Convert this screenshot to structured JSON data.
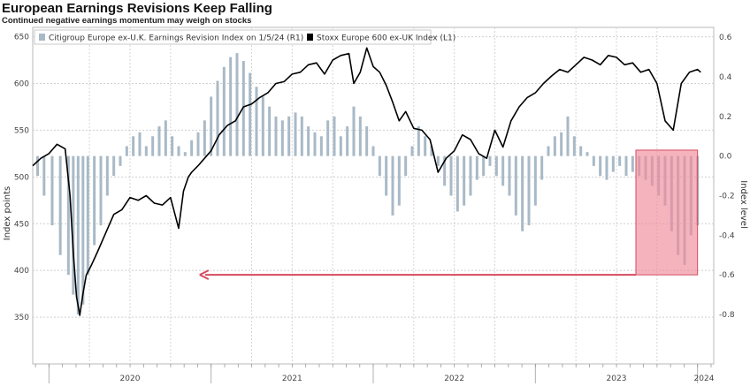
{
  "chart_data": {
    "type": "line",
    "title": "European Earnings Revisions Keep Falling",
    "subtitle": "Continued negative earnings momentum may weigh on stocks",
    "ylabel_left": "Index points",
    "ylabel_right": "Index level",
    "left_axis": {
      "min": 300,
      "max": 660,
      "ticks": [
        350,
        400,
        450,
        500,
        550,
        600,
        650
      ]
    },
    "right_axis": {
      "min": -1.05,
      "max": 0.65,
      "ticks": [
        -0.8,
        -0.6,
        -0.4,
        -0.2,
        0.0,
        0.2,
        0.4,
        0.6
      ],
      "tick_labels": [
        "-0.8",
        "-0.6",
        "-0.4",
        "-0.2",
        "0.0",
        "0.2",
        "0.4",
        "0.6"
      ]
    },
    "x_axis": {
      "start": 2019.9,
      "end": 2024.1,
      "year_labels": [
        {
          "label": "2020",
          "x": 2020.5
        },
        {
          "label": "2021",
          "x": 2021.5
        },
        {
          "label": "2022",
          "x": 2022.5
        },
        {
          "label": "2023",
          "x": 2023.5
        },
        {
          "label": "2024",
          "x": 2024.04
        }
      ],
      "year_boundaries": [
        2020,
        2021,
        2022,
        2023,
        2024
      ]
    },
    "grid": true,
    "legend": {
      "placement": "top-left",
      "entries": [
        {
          "label": "Citigroup Europe ex-U.K. Earnings Revision Index on 1/5/24 (R1)",
          "color": "#a9b9c6"
        },
        {
          "label": "Stoxx Europe 600 ex-UK Index (L1)",
          "color": "#000000"
        }
      ]
    },
    "series": [
      {
        "name": "Stoxx Europe 600 ex-UK Index (L1)",
        "axis": "left",
        "color": "#000000",
        "x": [
          2019.9,
          2019.95,
          2020.0,
          2020.05,
          2020.1,
          2020.13,
          2020.15,
          2020.17,
          2020.19,
          2020.21,
          2020.23,
          2020.26,
          2020.3,
          2020.35,
          2020.4,
          2020.45,
          2020.5,
          2020.55,
          2020.6,
          2020.65,
          2020.7,
          2020.75,
          2020.8,
          2020.83,
          2020.86,
          2020.88,
          2020.92,
          2020.96,
          2021.0,
          2021.05,
          2021.1,
          2021.15,
          2021.2,
          2021.25,
          2021.3,
          2021.35,
          2021.4,
          2021.45,
          2021.5,
          2021.55,
          2021.6,
          2021.65,
          2021.7,
          2021.75,
          2021.8,
          2021.85,
          2021.88,
          2021.92,
          2021.96,
          2022.0,
          2022.04,
          2022.08,
          2022.12,
          2022.16,
          2022.2,
          2022.25,
          2022.3,
          2022.35,
          2022.4,
          2022.45,
          2022.5,
          2022.55,
          2022.6,
          2022.65,
          2022.7,
          2022.75,
          2022.8,
          2022.85,
          2022.9,
          2022.95,
          2023.0,
          2023.05,
          2023.1,
          2023.15,
          2023.2,
          2023.25,
          2023.3,
          2023.35,
          2023.4,
          2023.45,
          2023.5,
          2023.55,
          2023.6,
          2023.65,
          2023.7,
          2023.75,
          2023.8,
          2023.85,
          2023.9,
          2023.95,
          2024.0,
          2024.02
        ],
        "values": [
          512,
          520,
          525,
          535,
          530,
          480,
          420,
          372,
          352,
          375,
          395,
          405,
          420,
          440,
          460,
          465,
          478,
          475,
          480,
          472,
          470,
          478,
          445,
          485,
          500,
          505,
          512,
          520,
          528,
          545,
          555,
          560,
          575,
          578,
          585,
          590,
          600,
          602,
          610,
          612,
          620,
          622,
          610,
          625,
          630,
          632,
          600,
          612,
          638,
          618,
          612,
          598,
          580,
          560,
          570,
          552,
          550,
          540,
          505,
          520,
          528,
          545,
          540,
          525,
          520,
          550,
          532,
          560,
          575,
          585,
          590,
          600,
          608,
          615,
          612,
          620,
          628,
          625,
          620,
          630,
          628,
          620,
          622,
          612,
          615,
          600,
          560,
          550,
          600,
          612,
          615,
          612
        ]
      },
      {
        "name": "Citigroup Europe ex-U.K. Earnings Revision Index on 1/5/24 (R1)",
        "axis": "right",
        "color": "#a9b9c6",
        "x": [
          2019.93,
          2019.97,
          2020.02,
          2020.07,
          2020.12,
          2020.15,
          2020.18,
          2020.21,
          2020.24,
          2020.28,
          2020.32,
          2020.36,
          2020.4,
          2020.44,
          2020.48,
          2020.52,
          2020.56,
          2020.6,
          2020.64,
          2020.68,
          2020.72,
          2020.76,
          2020.8,
          2020.84,
          2020.88,
          2020.92,
          2020.96,
          2021.0,
          2021.04,
          2021.08,
          2021.12,
          2021.16,
          2021.2,
          2021.24,
          2021.28,
          2021.32,
          2021.36,
          2021.4,
          2021.44,
          2021.48,
          2021.52,
          2021.56,
          2021.6,
          2021.64,
          2021.68,
          2021.72,
          2021.76,
          2021.8,
          2021.84,
          2021.88,
          2021.92,
          2021.96,
          2022.0,
          2022.04,
          2022.08,
          2022.12,
          2022.16,
          2022.2,
          2022.24,
          2022.28,
          2022.32,
          2022.36,
          2022.4,
          2022.44,
          2022.48,
          2022.52,
          2022.56,
          2022.6,
          2022.64,
          2022.68,
          2022.72,
          2022.76,
          2022.8,
          2022.84,
          2022.88,
          2022.92,
          2022.96,
          2023.0,
          2023.04,
          2023.08,
          2023.12,
          2023.16,
          2023.2,
          2023.24,
          2023.28,
          2023.32,
          2023.36,
          2023.4,
          2023.44,
          2023.48,
          2023.52,
          2023.56,
          2023.6,
          2023.64,
          2023.68,
          2023.72,
          2023.76,
          2023.8,
          2023.84,
          2023.88,
          2023.92,
          2023.96,
          2024.0
        ],
        "values": [
          -0.1,
          -0.2,
          -0.35,
          -0.5,
          -0.6,
          -0.7,
          -0.8,
          -0.75,
          -0.6,
          -0.45,
          -0.35,
          -0.2,
          -0.1,
          -0.05,
          0.05,
          0.1,
          0.12,
          0.05,
          0.1,
          0.15,
          0.18,
          0.1,
          0.05,
          0.02,
          0.08,
          0.12,
          0.18,
          0.3,
          0.38,
          0.45,
          0.5,
          0.52,
          0.48,
          0.42,
          0.35,
          0.3,
          0.25,
          0.2,
          0.18,
          0.2,
          0.22,
          0.2,
          0.15,
          0.12,
          0.1,
          0.18,
          0.2,
          0.1,
          0.15,
          0.25,
          0.2,
          0.15,
          0.05,
          -0.1,
          -0.2,
          -0.3,
          -0.25,
          -0.1,
          0.05,
          0.15,
          0.1,
          0.05,
          -0.05,
          -0.15,
          -0.2,
          -0.28,
          -0.25,
          -0.2,
          -0.12,
          -0.1,
          -0.05,
          -0.1,
          -0.15,
          -0.2,
          -0.3,
          -0.38,
          -0.35,
          -0.25,
          -0.12,
          0.05,
          0.1,
          0.12,
          0.2,
          0.1,
          0.05,
          0.02,
          -0.05,
          -0.1,
          -0.12,
          -0.08,
          -0.05,
          -0.1,
          -0.08,
          -0.1,
          -0.12,
          -0.15,
          -0.2,
          -0.25,
          -0.38,
          -0.5,
          -0.55,
          -0.4,
          -0.35
        ]
      }
    ],
    "annotations": [
      {
        "type": "highlight_box",
        "color": "#f08b9a",
        "x_start": 2023.62,
        "x_end": 2024.0,
        "y_right_start": -0.6,
        "y_right_end": 0.03
      },
      {
        "type": "arrow",
        "color": "#d64a5e",
        "direction": "left",
        "x_start": 2023.62,
        "x_end": 2020.93,
        "y_right": -0.6
      }
    ]
  }
}
